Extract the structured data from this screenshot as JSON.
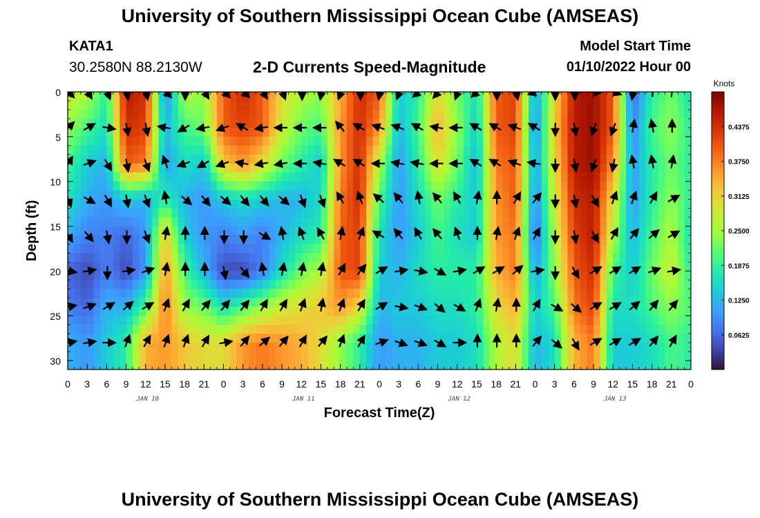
{
  "header": {
    "title": "University of Southern Mississippi Ocean Cube (AMSEAS)",
    "station": "KATA1",
    "coordinates": "30.2580N  88.2130W",
    "subtitle": "2-D Currents Speed-Magnitude",
    "model_start_label": "Model Start Time",
    "model_start_value": "01/10/2022 Hour 00"
  },
  "footer": {
    "title": "University of Southern Mississippi Ocean Cube (AMSEAS)"
  },
  "colors": {
    "scale": [
      "#30123b",
      "#4145ab",
      "#4675ed",
      "#39a2fc",
      "#1bcfd4",
      "#24eca6",
      "#61fc6c",
      "#a4fc3b",
      "#d1e834",
      "#f3c63a",
      "#fe9b2d",
      "#f36315",
      "#d93806",
      "#b11901",
      "#7a0402"
    ]
  },
  "chart_data": {
    "type": "heatmap",
    "title": "2-D Currents Speed-Magnitude",
    "xlabel": "Forecast Time(Z)",
    "ylabel": "Depth (ft)",
    "colorbar_title": "Knots",
    "xlim": [
      0,
      96
    ],
    "ylim": [
      0,
      31
    ],
    "x_ticks": [
      0,
      3,
      6,
      9,
      12,
      15,
      18,
      21,
      24,
      27,
      30,
      33,
      36,
      39,
      42,
      45,
      48,
      51,
      54,
      57,
      60,
      63,
      66,
      69,
      72,
      75,
      78,
      81,
      84,
      87,
      90,
      93,
      96
    ],
    "x_tick_labels": [
      "0",
      "3",
      "6",
      "9",
      "12",
      "15",
      "18",
      "21",
      "0",
      "3",
      "6",
      "9",
      "12",
      "15",
      "18",
      "21",
      "0",
      "3",
      "6",
      "9",
      "12",
      "15",
      "18",
      "21",
      "0",
      "3",
      "6",
      "9",
      "12",
      "15",
      "18",
      "21",
      "0"
    ],
    "y_ticks": [
      0,
      5,
      10,
      15,
      20,
      25,
      30
    ],
    "y_tick_labels": [
      "0",
      "5",
      "10",
      "15",
      "20",
      "25",
      "30"
    ],
    "day_labels": [
      {
        "x": 12,
        "label": "JAN 10"
      },
      {
        "x": 36,
        "label": "JAN 11"
      },
      {
        "x": 60,
        "label": "JAN 12"
      },
      {
        "x": 84,
        "label": "JAN 13"
      }
    ],
    "colorbar_min": 0.0,
    "colorbar_max": 0.5,
    "colorbar_ticks": [
      0.0625,
      0.125,
      0.1875,
      0.25,
      0.3125,
      0.375,
      0.4375
    ],
    "colorbar_tick_labels": [
      "0.0625",
      "0.1250",
      "0.1875",
      "0.2500",
      "0.3125",
      "0.3750",
      "0.4375"
    ],
    "depths": [
      0,
      4,
      8,
      12,
      16,
      20,
      24,
      28
    ],
    "times": [
      0,
      3,
      6,
      9,
      12,
      15,
      18,
      21,
      24,
      27,
      30,
      33,
      36,
      39,
      42,
      45,
      48,
      51,
      54,
      57,
      60,
      63,
      66,
      69,
      72,
      75,
      78,
      81,
      84,
      87,
      90,
      93,
      96
    ],
    "speed_knots": [
      [
        0.28,
        0.26,
        0.18,
        0.46,
        0.44,
        0.08,
        0.26,
        0.24,
        0.4,
        0.44,
        0.4,
        0.3,
        0.26,
        0.24,
        0.34,
        0.44,
        0.4,
        0.14,
        0.18,
        0.3,
        0.22,
        0.16,
        0.4,
        0.42,
        0.1,
        0.3,
        0.46,
        0.48,
        0.4,
        0.06,
        0.18,
        0.22,
        0.16
      ],
      [
        0.24,
        0.2,
        0.16,
        0.44,
        0.42,
        0.12,
        0.2,
        0.22,
        0.4,
        0.42,
        0.4,
        0.28,
        0.22,
        0.2,
        0.36,
        0.44,
        0.36,
        0.12,
        0.2,
        0.34,
        0.24,
        0.14,
        0.4,
        0.42,
        0.08,
        0.32,
        0.46,
        0.48,
        0.4,
        0.08,
        0.2,
        0.24,
        0.18
      ],
      [
        0.2,
        0.14,
        0.12,
        0.4,
        0.38,
        0.1,
        0.16,
        0.14,
        0.32,
        0.36,
        0.3,
        0.22,
        0.18,
        0.14,
        0.36,
        0.44,
        0.26,
        0.1,
        0.18,
        0.3,
        0.22,
        0.12,
        0.38,
        0.4,
        0.1,
        0.3,
        0.46,
        0.48,
        0.36,
        0.1,
        0.18,
        0.22,
        0.18
      ],
      [
        0.16,
        0.12,
        0.1,
        0.14,
        0.12,
        0.18,
        0.12,
        0.1,
        0.14,
        0.16,
        0.14,
        0.12,
        0.12,
        0.16,
        0.38,
        0.44,
        0.2,
        0.1,
        0.16,
        0.22,
        0.18,
        0.14,
        0.36,
        0.4,
        0.08,
        0.28,
        0.44,
        0.46,
        0.3,
        0.1,
        0.18,
        0.24,
        0.18
      ],
      [
        0.12,
        0.08,
        0.08,
        0.06,
        0.1,
        0.32,
        0.14,
        0.1,
        0.08,
        0.1,
        0.08,
        0.12,
        0.16,
        0.18,
        0.4,
        0.42,
        0.16,
        0.1,
        0.14,
        0.2,
        0.16,
        0.14,
        0.36,
        0.38,
        0.06,
        0.26,
        0.42,
        0.46,
        0.26,
        0.12,
        0.2,
        0.26,
        0.16
      ],
      [
        0.06,
        0.04,
        0.08,
        0.04,
        0.1,
        0.36,
        0.2,
        0.12,
        0.04,
        0.04,
        0.08,
        0.16,
        0.22,
        0.26,
        0.4,
        0.42,
        0.14,
        0.12,
        0.16,
        0.18,
        0.18,
        0.18,
        0.34,
        0.38,
        0.1,
        0.24,
        0.4,
        0.44,
        0.2,
        0.14,
        0.22,
        0.28,
        0.18
      ],
      [
        0.08,
        0.06,
        0.12,
        0.12,
        0.2,
        0.38,
        0.24,
        0.22,
        0.16,
        0.2,
        0.24,
        0.28,
        0.3,
        0.32,
        0.36,
        0.3,
        0.12,
        0.14,
        0.14,
        0.16,
        0.16,
        0.18,
        0.3,
        0.34,
        0.14,
        0.2,
        0.38,
        0.42,
        0.16,
        0.16,
        0.2,
        0.24,
        0.2
      ],
      [
        0.12,
        0.1,
        0.14,
        0.18,
        0.34,
        0.36,
        0.32,
        0.3,
        0.3,
        0.36,
        0.38,
        0.36,
        0.34,
        0.3,
        0.24,
        0.18,
        0.1,
        0.12,
        0.12,
        0.14,
        0.14,
        0.16,
        0.26,
        0.3,
        0.12,
        0.16,
        0.34,
        0.38,
        0.14,
        0.14,
        0.16,
        0.2,
        0.18
      ]
    ],
    "arrow_rows_ft": [
      0,
      4,
      8,
      12,
      16,
      20,
      24,
      28
    ],
    "arrow_times": [
      0,
      3,
      6,
      9,
      12,
      15,
      18,
      21,
      24,
      27,
      30,
      33,
      36,
      39,
      42,
      45,
      48,
      51,
      54,
      57,
      60,
      63,
      66,
      69,
      72,
      75,
      78,
      81,
      84,
      87,
      90,
      93
    ],
    "arrow_direction_deg": [
      [
        135,
        150,
        160,
        170,
        170,
        135,
        180,
        150,
        135,
        135,
        150,
        160,
        180,
        190,
        200,
        180,
        190,
        200,
        230,
        220,
        200,
        230,
        180,
        170,
        250,
        180,
        180,
        90,
        110,
        190,
        0,
        10
      ],
      [
        45,
        60,
        100,
        170,
        170,
        280,
        240,
        260,
        250,
        300,
        260,
        270,
        270,
        270,
        320,
        300,
        290,
        290,
        300,
        280,
        270,
        300,
        300,
        290,
        300,
        180,
        170,
        200,
        200,
        10,
        350,
        0
      ],
      [
        30,
        70,
        150,
        170,
        160,
        340,
        250,
        240,
        250,
        280,
        260,
        260,
        270,
        280,
        300,
        300,
        270,
        280,
        280,
        270,
        270,
        300,
        300,
        290,
        280,
        180,
        170,
        200,
        190,
        350,
        350,
        10
      ],
      [
        160,
        120,
        150,
        170,
        160,
        350,
        130,
        140,
        130,
        140,
        140,
        130,
        160,
        160,
        330,
        340,
        310,
        320,
        350,
        320,
        330,
        10,
        0,
        30,
        40,
        180,
        170,
        150,
        20,
        20,
        30,
        60
      ],
      [
        150,
        140,
        170,
        180,
        160,
        10,
        0,
        0,
        180,
        180,
        120,
        350,
        340,
        330,
        10,
        20,
        300,
        320,
        330,
        320,
        340,
        0,
        10,
        20,
        30,
        180,
        170,
        150,
        30,
        40,
        50,
        60
      ],
      [
        100,
        80,
        180,
        80,
        70,
        10,
        0,
        0,
        170,
        140,
        350,
        10,
        10,
        10,
        30,
        40,
        60,
        80,
        100,
        120,
        80,
        60,
        60,
        50,
        80,
        180,
        150,
        60,
        60,
        60,
        70,
        80
      ],
      [
        80,
        70,
        60,
        50,
        60,
        20,
        30,
        40,
        40,
        40,
        30,
        30,
        20,
        10,
        20,
        30,
        60,
        100,
        110,
        130,
        120,
        20,
        10,
        0,
        30,
        120,
        130,
        60,
        60,
        50,
        40,
        40
      ],
      [
        80,
        80,
        90,
        20,
        30,
        20,
        20,
        30,
        80,
        40,
        50,
        40,
        30,
        40,
        20,
        30,
        70,
        110,
        110,
        120,
        90,
        0,
        0,
        0,
        40,
        130,
        150,
        60,
        60,
        60,
        40,
        30
      ]
    ]
  }
}
